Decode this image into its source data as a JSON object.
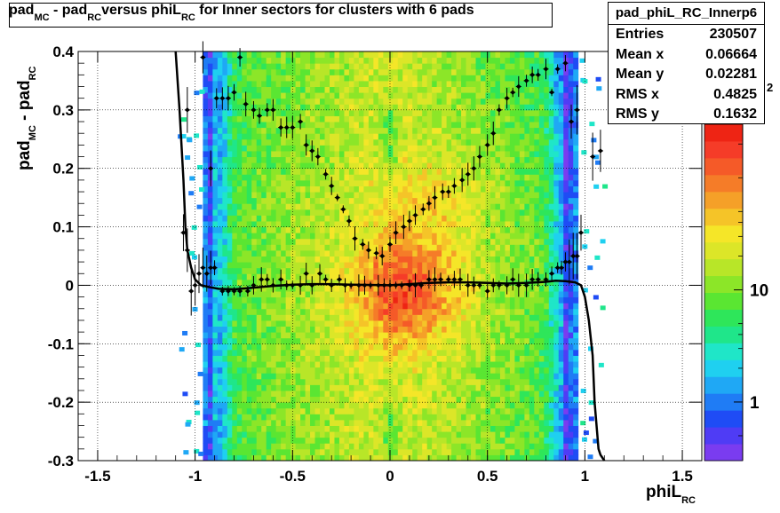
{
  "title": {
    "pre": "pad",
    "sub1": "MC",
    "mid": " - pad",
    "sub2": "RC",
    "post": "versus phiL",
    "sub3": "RC",
    "tail": " for Inner sectors for clusters with 6 pads"
  },
  "stats": {
    "name": "pad_phiL_RC_Innerp6",
    "rows": [
      {
        "label": "Entries",
        "value": "230507"
      },
      {
        "label": "Mean x",
        "value": "0.06664"
      },
      {
        "label": "Mean y",
        "value": "0.02281"
      },
      {
        "label": "RMS x",
        "value": "0.4825"
      },
      {
        "label": "RMS y",
        "value": "0.1632"
      }
    ]
  },
  "axis_labels": {
    "y_pre": "pad",
    "y_sub1": "MC",
    "y_mid": " - pad",
    "y_sub2": "RC",
    "x_pre": "phiL",
    "x_sub": "RC"
  },
  "chart_data": {
    "type": "heatmap",
    "xlim": [
      -1.6,
      1.6
    ],
    "ylim": [
      -0.3,
      0.4
    ],
    "x_ticks": [
      {
        "v": -1.5,
        "label": "-1.5"
      },
      {
        "v": -1,
        "label": "-1"
      },
      {
        "v": -0.5,
        "label": "-0.5"
      },
      {
        "v": 0,
        "label": "0"
      },
      {
        "v": 0.5,
        "label": "0.5"
      },
      {
        "v": 1,
        "label": "1"
      },
      {
        "v": 1.5,
        "label": "1.5"
      }
    ],
    "y_ticks": [
      {
        "v": -0.3,
        "label": "-0.3"
      },
      {
        "v": -0.2,
        "label": "-0.2"
      },
      {
        "v": -0.1,
        "label": "-0.1"
      },
      {
        "v": 0,
        "label": "0"
      },
      {
        "v": 0.1,
        "label": "0.1"
      },
      {
        "v": 0.2,
        "label": "0.2"
      },
      {
        "v": 0.3,
        "label": "0.3"
      },
      {
        "v": 0.4,
        "label": "0.4"
      }
    ],
    "grid": true,
    "colorbar": {
      "scale": "log",
      "labels": [
        {
          "v": 1,
          "label": "1"
        },
        {
          "v": 10,
          "label": "10"
        }
      ],
      "exponent_label": "2"
    },
    "profile_points": [
      [
        -1.06,
        0.09
      ],
      [
        -1.04,
        0.06
      ],
      [
        -1.02,
        -0.01
      ],
      [
        -1.0,
        0.0
      ],
      [
        -0.98,
        0.02
      ],
      [
        -0.96,
        0.03
      ],
      [
        -0.94,
        0.02
      ],
      [
        -0.92,
        0.03
      ],
      [
        -0.9,
        0.03
      ],
      [
        -0.86,
        -0.01
      ],
      [
        -0.83,
        -0.01
      ],
      [
        -0.8,
        -0.01
      ],
      [
        -0.77,
        -0.01
      ],
      [
        -0.73,
        -0.01
      ],
      [
        -0.7,
        -0.0
      ],
      [
        -0.66,
        0.01
      ],
      [
        -0.63,
        0.01
      ],
      [
        -0.6,
        0.0
      ],
      [
        -0.56,
        0.01
      ],
      [
        -0.53,
        0.0
      ],
      [
        -0.5,
        0.0
      ],
      [
        -0.46,
        0.0
      ],
      [
        -0.43,
        0.02
      ],
      [
        -0.4,
        0.0
      ],
      [
        -0.36,
        0.02
      ],
      [
        -0.33,
        0.01
      ],
      [
        -0.3,
        0.0
      ],
      [
        -0.26,
        0.01
      ],
      [
        -0.23,
        0.0
      ],
      [
        -0.2,
        0.0
      ],
      [
        -0.16,
        0.0
      ],
      [
        -0.13,
        0.0
      ],
      [
        -0.1,
        0.0
      ],
      [
        -0.06,
        0.0
      ],
      [
        -0.03,
        0.0
      ],
      [
        0.0,
        0.0
      ],
      [
        0.03,
        0.0
      ],
      [
        0.06,
        0.0
      ],
      [
        0.1,
        0.0
      ],
      [
        0.13,
        0.0
      ],
      [
        0.16,
        0.0
      ],
      [
        0.2,
        0.01
      ],
      [
        0.23,
        0.01
      ],
      [
        0.26,
        0.01
      ],
      [
        0.3,
        0.01
      ],
      [
        0.33,
        0.01
      ],
      [
        0.36,
        0.01
      ],
      [
        0.4,
        0.0
      ],
      [
        0.43,
        0.0
      ],
      [
        0.46,
        0.0
      ],
      [
        0.5,
        -0.01
      ],
      [
        0.53,
        0.0
      ],
      [
        0.56,
        0.0
      ],
      [
        0.6,
        0.0
      ],
      [
        0.63,
        0.01
      ],
      [
        0.66,
        0.0
      ],
      [
        0.7,
        0.0
      ],
      [
        0.73,
        0.01
      ],
      [
        0.76,
        0.01
      ],
      [
        0.8,
        0.01
      ],
      [
        0.83,
        0.02
      ],
      [
        0.86,
        0.03
      ],
      [
        0.88,
        0.03
      ],
      [
        0.9,
        0.04
      ],
      [
        0.92,
        0.04
      ],
      [
        0.94,
        0.05
      ],
      [
        0.96,
        0.05
      ],
      [
        0.98,
        0.09
      ]
    ],
    "upper_points": [
      [
        -1.04,
        0.3
      ],
      [
        -0.96,
        0.39
      ],
      [
        -0.92,
        0.2
      ],
      [
        -0.89,
        0.32
      ],
      [
        -0.86,
        0.32
      ],
      [
        -0.83,
        0.32
      ],
      [
        -0.8,
        0.33
      ],
      [
        -0.77,
        0.39
      ],
      [
        -0.74,
        0.31
      ],
      [
        -0.7,
        0.3
      ],
      [
        -0.67,
        0.29
      ],
      [
        -0.63,
        0.3
      ],
      [
        -0.6,
        0.3
      ],
      [
        -0.56,
        0.27
      ],
      [
        -0.53,
        0.27
      ],
      [
        -0.5,
        0.27
      ],
      [
        -0.46,
        0.28
      ],
      [
        -0.43,
        0.24
      ],
      [
        -0.4,
        0.23
      ],
      [
        -0.37,
        0.22
      ],
      [
        -0.33,
        0.19
      ],
      [
        -0.3,
        0.17
      ],
      [
        -0.27,
        0.15
      ],
      [
        -0.24,
        0.13
      ],
      [
        -0.21,
        0.11
      ],
      [
        -0.18,
        0.08
      ],
      [
        -0.14,
        0.07
      ],
      [
        -0.11,
        0.06
      ],
      [
        -0.07,
        0.055
      ],
      [
        -0.04,
        0.05
      ],
      [
        0.0,
        0.07
      ],
      [
        0.03,
        0.09
      ],
      [
        0.07,
        0.1
      ],
      [
        0.1,
        0.11
      ],
      [
        0.13,
        0.12
      ],
      [
        0.17,
        0.13
      ],
      [
        0.2,
        0.14
      ],
      [
        0.23,
        0.15
      ],
      [
        0.27,
        0.16
      ],
      [
        0.3,
        0.16
      ],
      [
        0.33,
        0.17
      ],
      [
        0.37,
        0.18
      ],
      [
        0.4,
        0.19
      ],
      [
        0.43,
        0.2
      ],
      [
        0.46,
        0.22
      ],
      [
        0.5,
        0.24
      ],
      [
        0.53,
        0.26
      ],
      [
        0.56,
        0.3
      ],
      [
        0.6,
        0.32
      ],
      [
        0.63,
        0.33
      ],
      [
        0.66,
        0.34
      ],
      [
        0.7,
        0.35
      ],
      [
        0.73,
        0.36
      ],
      [
        0.76,
        0.36
      ],
      [
        0.8,
        0.37
      ],
      [
        0.83,
        0.33
      ],
      [
        0.86,
        0.37
      ],
      [
        0.9,
        0.38
      ],
      [
        0.93,
        0.28
      ],
      [
        0.96,
        0.3
      ],
      [
        1.04,
        0.22
      ],
      [
        1.08,
        0.23
      ]
    ],
    "fit_curve": [
      [
        -1.1,
        0.41
      ],
      [
        -1.08,
        0.3
      ],
      [
        -1.06,
        0.18
      ],
      [
        -1.05,
        0.1
      ],
      [
        -1.04,
        0.06
      ],
      [
        -1.02,
        0.03
      ],
      [
        -1.0,
        0.01
      ],
      [
        -0.97,
        0.0
      ],
      [
        -0.93,
        -0.003
      ],
      [
        -0.88,
        -0.006
      ],
      [
        -0.8,
        -0.007
      ],
      [
        -0.7,
        -0.004
      ],
      [
        -0.6,
        -0.001
      ],
      [
        -0.5,
        0.001
      ],
      [
        -0.4,
        0.002
      ],
      [
        -0.3,
        0.002
      ],
      [
        -0.2,
        0.001
      ],
      [
        0.0,
        0.0
      ],
      [
        0.1,
        0.002
      ],
      [
        0.2,
        0.004
      ],
      [
        0.3,
        0.005
      ],
      [
        0.4,
        0.005
      ],
      [
        0.5,
        0.004
      ],
      [
        0.6,
        0.003
      ],
      [
        0.7,
        0.004
      ],
      [
        0.8,
        0.006
      ],
      [
        0.85,
        0.008
      ],
      [
        0.9,
        0.007
      ],
      [
        0.95,
        0.005
      ],
      [
        0.98,
        0.0
      ],
      [
        1.0,
        -0.02
      ],
      [
        1.02,
        -0.06
      ],
      [
        1.04,
        -0.12
      ],
      [
        1.05,
        -0.2
      ],
      [
        1.07,
        -0.28
      ],
      [
        1.08,
        -0.29
      ],
      [
        1.1,
        -0.31
      ]
    ]
  }
}
